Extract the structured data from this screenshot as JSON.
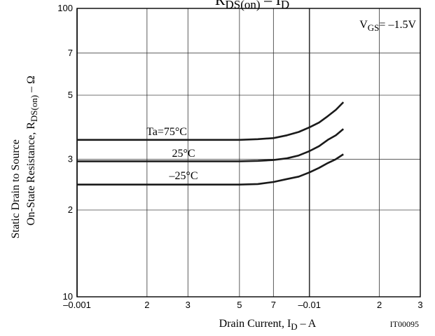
{
  "chart_data": {
    "type": "line",
    "title": {
      "parts": [
        "R",
        "DS(on)",
        " – I",
        "D"
      ]
    },
    "x_label": {
      "parts": [
        "Drain Current, I",
        "D",
        " – A"
      ]
    },
    "y_label": {
      "line1": "Static Drain to Source",
      "line2_parts": [
        "On-State Resistance, R",
        "DS(on)",
        " – Ω"
      ]
    },
    "annotations": {
      "condition_parts": [
        "V",
        "GS",
        "= –1.5V"
      ],
      "code": "IT00095"
    },
    "log_x": true,
    "log_y": true,
    "grid": true,
    "xlim": [
      -0.001,
      -0.03
    ],
    "ylim": [
      10,
      100
    ],
    "xticks": [
      {
        "value": -0.001,
        "label": "–0.001"
      },
      {
        "value": -0.002,
        "label": "2"
      },
      {
        "value": -0.003,
        "label": "3"
      },
      {
        "value": -0.005,
        "label": "5"
      },
      {
        "value": -0.007,
        "label": "7"
      },
      {
        "value": -0.01,
        "label": "–0.01"
      },
      {
        "value": -0.02,
        "label": "2"
      },
      {
        "value": -0.03,
        "label": "3"
      }
    ],
    "yticks": [
      10,
      {
        "value": 20,
        "label": "2"
      },
      {
        "value": 30,
        "label": "3"
      },
      {
        "value": 50,
        "label": "5"
      },
      {
        "value": 70,
        "label": "7"
      },
      100
    ],
    "x": [
      -0.001,
      -0.002,
      -0.003,
      -0.004,
      -0.005,
      -0.006,
      -0.007,
      -0.008,
      -0.009,
      -0.01,
      -0.011,
      -0.012,
      -0.013,
      -0.014
    ],
    "series": [
      {
        "name": "Ta=75°C",
        "color": "#1a1a1a",
        "values": [
          35,
          35,
          35,
          35,
          35,
          35.2,
          35.5,
          36.3,
          37.3,
          38.7,
          40.2,
          42.3,
          44.5,
          47.3
        ]
      },
      {
        "name": "25°C",
        "color": "#1a1a1a",
        "values": [
          29.5,
          29.5,
          29.5,
          29.5,
          29.5,
          29.6,
          29.8,
          30.2,
          30.9,
          32,
          33.3,
          35,
          36.3,
          38.2
        ]
      },
      {
        "name": "–25°C",
        "color": "#1a1a1a",
        "values": [
          24.5,
          24.5,
          24.5,
          24.5,
          24.5,
          24.6,
          25,
          25.6,
          26.1,
          27,
          28,
          29.1,
          30,
          31.2
        ]
      }
    ]
  }
}
